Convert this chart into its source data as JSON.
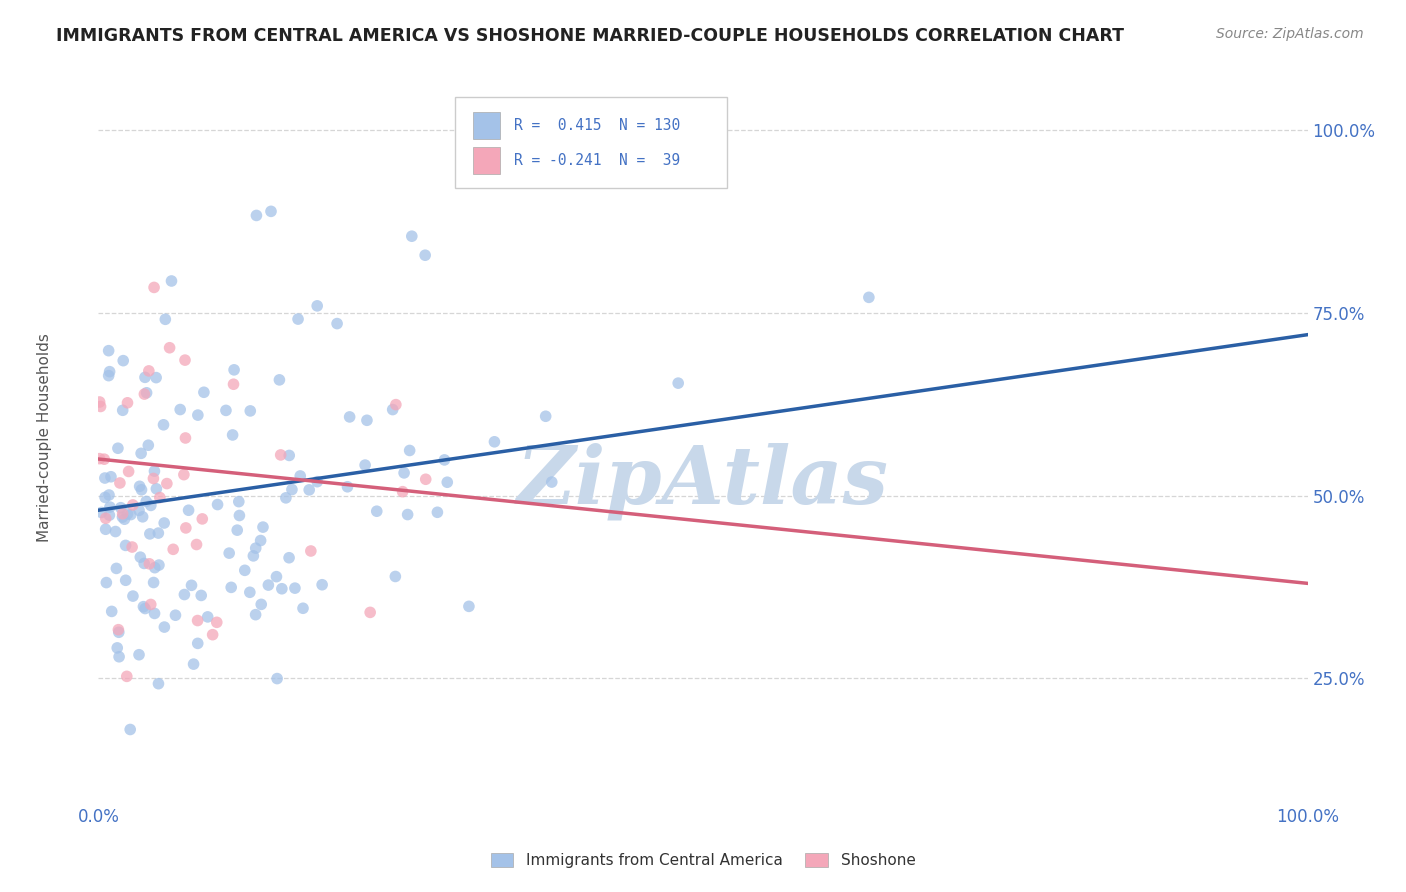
{
  "title": "IMMIGRANTS FROM CENTRAL AMERICA VS SHOSHONE MARRIED-COUPLE HOUSEHOLDS CORRELATION CHART",
  "source": "Source: ZipAtlas.com",
  "ylabel": "Married-couple Households",
  "ytick_labels": [
    "25.0%",
    "50.0%",
    "75.0%",
    "100.0%"
  ],
  "ytick_values": [
    0.25,
    0.5,
    0.75,
    1.0
  ],
  "watermark": "ZipAtlas",
  "legend_blue_r": "0.415",
  "legend_blue_n": "130",
  "legend_pink_r": "-0.241",
  "legend_pink_n": "39",
  "legend_blue_label": "Immigrants from Central America",
  "legend_pink_label": "Shoshone",
  "blue_color": "#a4c2e8",
  "pink_color": "#f4a7b9",
  "blue_line_color": "#2a5fa5",
  "pink_line_color": "#d45f7a",
  "background_color": "#ffffff",
  "grid_color": "#cccccc",
  "title_color": "#222222",
  "source_color": "#888888",
  "watermark_color": "#c8d8ea",
  "axis_label_color": "#4472c4",
  "seed_blue": 42,
  "seed_pink": 7,
  "n_blue": 130,
  "n_pink": 39,
  "r_blue": 0.415,
  "r_pink": -0.241,
  "blue_line_y0": 0.48,
  "blue_line_y1": 0.72,
  "pink_line_y0": 0.55,
  "pink_line_y1": 0.38,
  "xlim": [
    0.0,
    1.0
  ],
  "ylim": [
    0.08,
    1.08
  ]
}
